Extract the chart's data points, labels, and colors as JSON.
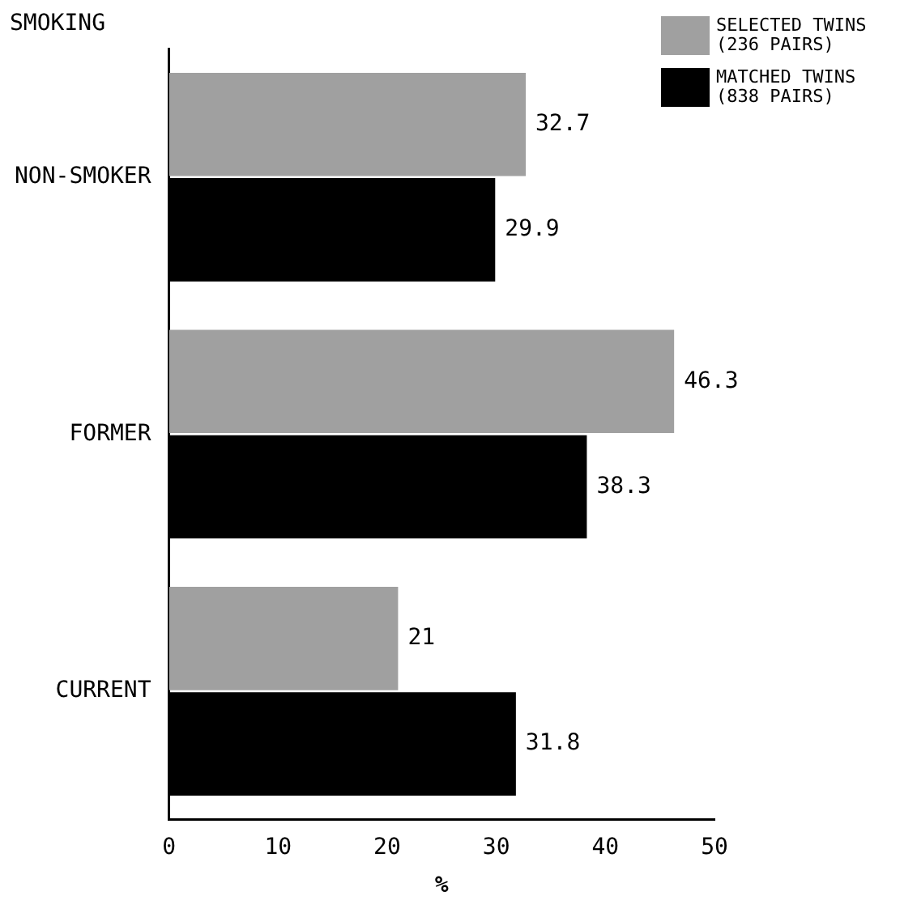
{
  "chart_data": {
    "type": "bar",
    "orientation": "horizontal",
    "ylabel": "SMOKING",
    "xlabel": "%",
    "categories": [
      "NON-SMOKER",
      "FORMER",
      "CURRENT"
    ],
    "series": [
      {
        "name": "SELECTED TWINS (236 PAIRS)",
        "color": "#a0a0a0",
        "values": [
          32.7,
          46.3,
          21
        ]
      },
      {
        "name": "MATCHED TWINS (838 PAIRS)",
        "color": "#000000",
        "values": [
          29.9,
          38.3,
          31.8
        ]
      }
    ],
    "xlim": [
      0,
      50
    ],
    "xticks": [
      0,
      10,
      20,
      30,
      40,
      50
    ],
    "grid": false,
    "legend": "top right",
    "data_labels": true
  }
}
